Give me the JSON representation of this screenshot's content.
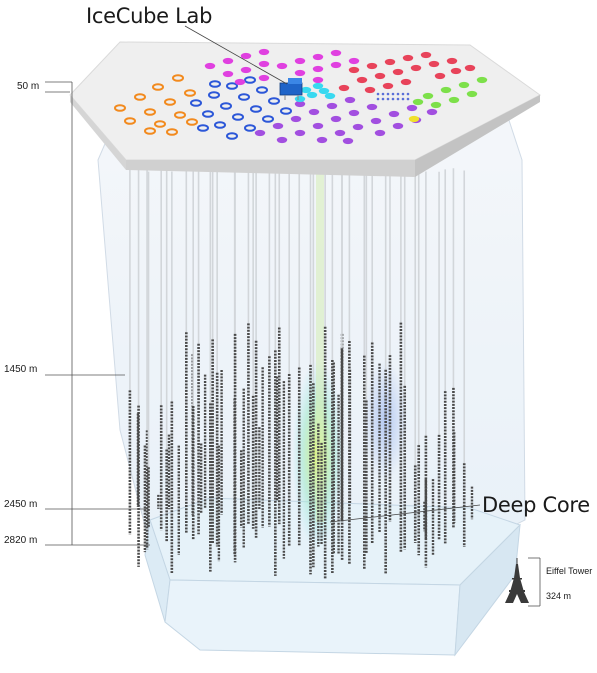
{
  "diagram": {
    "labels": {
      "icecube_lab": "IceCube Lab",
      "deep_core": "Deep Core",
      "eiffel_tower": "Eiffel Tower",
      "eiffel_height": "324 m"
    },
    "depth_markers": [
      "50 m",
      "1450 m",
      "2450 m",
      "2820 m"
    ],
    "colors": {
      "surface_deck": "#efefef",
      "ice_volume": "#e9f0f8",
      "bedrock_slab": "#e3f1f8",
      "cable": "#d2d6da",
      "sensor": "#4a4a4a",
      "deep_core_glow": "#d9f25a",
      "station_orange": "#f28a1e",
      "station_blue": "#2c57d8",
      "station_magenta": "#e040e0",
      "station_red": "#e8435a",
      "station_purple": "#a24fe0",
      "station_cyan": "#38d9f0",
      "station_green": "#7de04a",
      "station_yellow": "#f0e02c"
    },
    "icons": [
      "icecube-lab-building-icon",
      "eiffel-tower-icon"
    ]
  }
}
